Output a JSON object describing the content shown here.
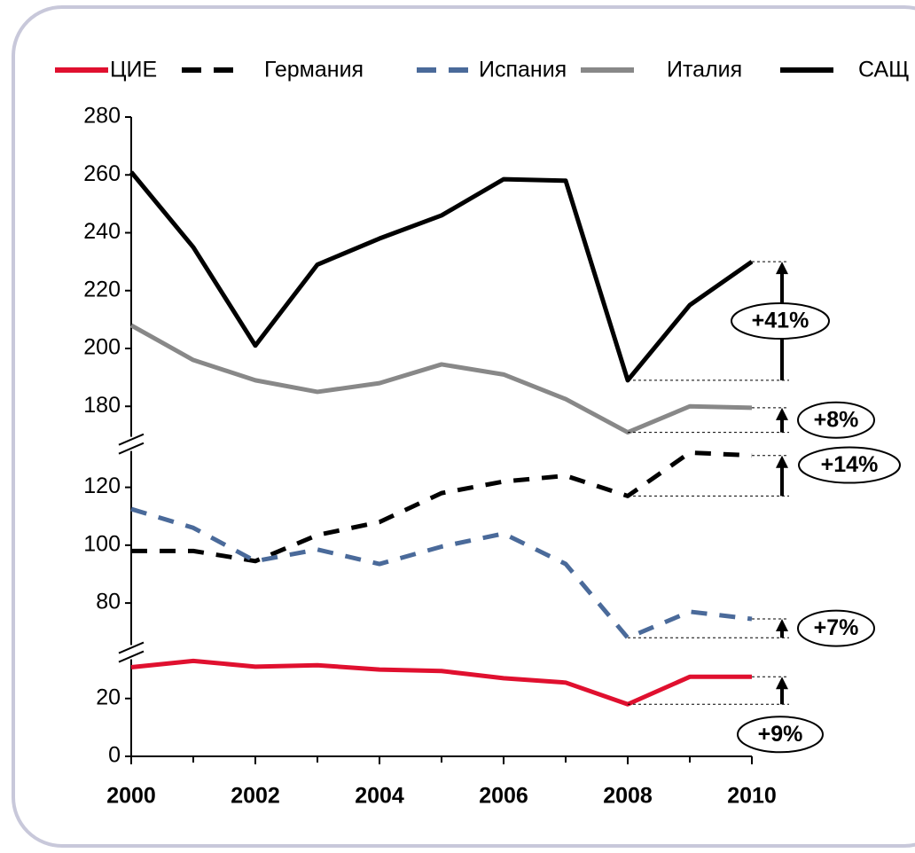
{
  "chart_data": {
    "type": "line",
    "x": [
      2000,
      2001,
      2002,
      2003,
      2004,
      2005,
      2006,
      2007,
      2008,
      2009,
      2010
    ],
    "xlim": [
      2000,
      2010
    ],
    "xticks": [
      2000,
      2002,
      2004,
      2006,
      2008,
      2010
    ],
    "y_segments": [
      {
        "ylim": [
          0,
          36
        ],
        "yticks": [
          0,
          20
        ]
      },
      {
        "ylim": [
          63,
          135
        ],
        "yticks": [
          80,
          100,
          120
        ]
      },
      {
        "ylim": [
          167,
          280
        ],
        "yticks": [
          180,
          200,
          220,
          240,
          260,
          280
        ]
      }
    ],
    "legend": "top",
    "series": [
      {
        "name": "ЦИЕ",
        "color": "#e0102f",
        "line_style": "solid",
        "annotation": "+9%",
        "values": [
          30.8,
          33,
          31,
          31.5,
          30,
          29.5,
          27,
          25.5,
          18,
          27.5,
          27.5
        ]
      },
      {
        "name": "Германия",
        "color": "#000000",
        "line_style": "dashed",
        "annotation": "+14%",
        "values": [
          98,
          98,
          94.5,
          103.5,
          108,
          118,
          122,
          124,
          117,
          132,
          131
        ]
      },
      {
        "name": "Испания",
        "color": "#4a6a9a",
        "line_style": "dashed",
        "annotation": "+7%",
        "values": [
          112.5,
          106,
          94.5,
          98.5,
          93.5,
          99.5,
          104,
          93.5,
          68,
          77,
          74.5
        ]
      },
      {
        "name": "Италия",
        "color": "#888888",
        "line_style": "solid",
        "annotation": "+8%",
        "values": [
          208,
          196,
          189,
          185,
          188,
          194.5,
          191,
          182.5,
          171,
          180,
          179.5
        ]
      },
      {
        "name": "САЩ",
        "color": "#000000",
        "line_style": "solid",
        "annotation": "+41%",
        "values": [
          261,
          235,
          201,
          229,
          238,
          246,
          258.5,
          258,
          189,
          215,
          230
        ]
      }
    ]
  }
}
